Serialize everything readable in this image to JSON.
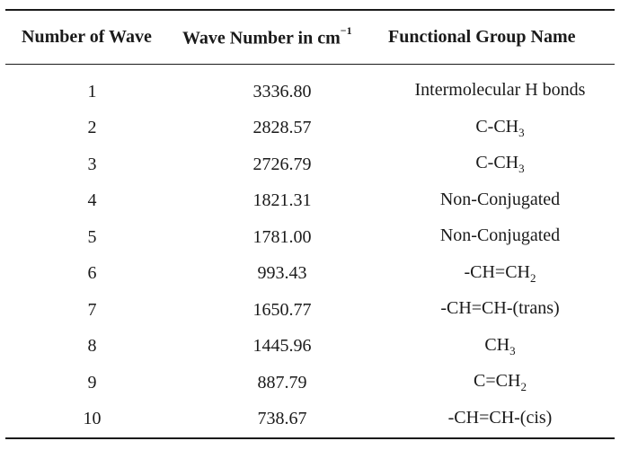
{
  "table": {
    "headers": {
      "number_of_wave": "Number of Wave",
      "wave_number": "Wave Number in cm",
      "wave_number_sup": "−1",
      "functional_group": "Functional Group Name"
    },
    "rows": [
      {
        "n": "1",
        "wave": "3336.80",
        "group": "Intermolecular H bonds",
        "sub": "",
        "after": ""
      },
      {
        "n": "2",
        "wave": "2828.57",
        "group": "C-CH",
        "sub": "3",
        "after": ""
      },
      {
        "n": "3",
        "wave": "2726.79",
        "group": "C-CH",
        "sub": "3",
        "after": ""
      },
      {
        "n": "4",
        "wave": "1821.31",
        "group": "Non-Conjugated",
        "sub": "",
        "after": ""
      },
      {
        "n": "5",
        "wave": "1781.00",
        "group": "Non-Conjugated",
        "sub": "",
        "after": ""
      },
      {
        "n": "6",
        "wave": "993.43",
        "group": "-CH=CH",
        "sub": "2",
        "after": ""
      },
      {
        "n": "7",
        "wave": "1650.77",
        "group": "-CH=CH-(trans)",
        "sub": "",
        "after": ""
      },
      {
        "n": "8",
        "wave": "1445.96",
        "group": "CH",
        "sub": "3",
        "after": ""
      },
      {
        "n": "9",
        "wave": "887.79",
        "group": "C=CH",
        "sub": "2",
        "after": ""
      },
      {
        "n": "10",
        "wave": "738.67",
        "group": "-CH=CH-(cis)",
        "sub": "",
        "after": ""
      }
    ]
  }
}
